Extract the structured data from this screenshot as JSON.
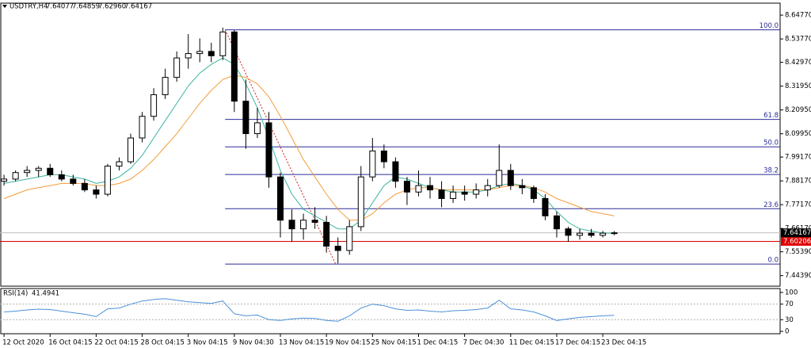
{
  "chart_data": {
    "type": "candlestick",
    "symbol": "USDTRY,H4",
    "quote": [
      "7.64077",
      "7.64859",
      "7.62960",
      "7.64167"
    ],
    "categories": [
      "12 Oct 2020",
      null,
      null,
      null,
      "16 Oct 04:15",
      null,
      null,
      null,
      "22 Oct 04:15",
      null,
      null,
      null,
      "28 Oct 04:15",
      null,
      null,
      null,
      "3 Nov 04:15",
      null,
      null,
      null,
      "9 Nov 04:30",
      null,
      null,
      null,
      "13 Nov 04:15",
      null,
      null,
      null,
      "19 Nov 04:15",
      null,
      null,
      null,
      "25 Nov 04:15",
      null,
      null,
      null,
      "1 Dec 04:15",
      null,
      null,
      null,
      "7 Dec 04:30",
      null,
      null,
      null,
      "11 Dec 04:15",
      null,
      null,
      null,
      "17 Dec 04:15",
      null,
      null,
      null,
      "23 Dec 04:15",
      null
    ],
    "open": [
      7.88,
      7.89,
      7.92,
      7.93,
      7.94,
      7.91,
      7.89,
      7.87,
      7.84,
      7.82,
      7.95,
      7.97,
      8.08,
      8.18,
      8.28,
      8.36,
      8.45,
      8.47,
      8.48,
      8.46,
      8.57,
      8.25,
      8.1,
      8.15,
      7.9,
      7.7,
      7.66,
      7.7,
      7.69,
      7.58,
      7.56,
      7.67,
      7.9,
      8.02,
      7.97,
      7.88,
      7.83,
      7.86,
      7.84,
      7.8,
      7.83,
      7.82,
      7.84,
      7.86,
      7.93,
      7.86,
      7.85,
      7.8,
      7.72,
      7.66,
      7.63,
      7.64,
      7.63,
      7.64
    ],
    "high": [
      7.91,
      7.93,
      7.95,
      7.95,
      7.96,
      7.93,
      7.91,
      7.89,
      7.86,
      7.96,
      7.99,
      8.1,
      8.2,
      8.31,
      8.4,
      8.48,
      8.56,
      8.54,
      8.52,
      8.59,
      8.58,
      8.35,
      8.22,
      8.2,
      7.92,
      7.75,
      7.73,
      7.76,
      7.72,
      7.62,
      7.7,
      7.95,
      8.08,
      8.05,
      7.99,
      7.9,
      7.93,
      7.9,
      7.88,
      7.86,
      7.86,
      7.87,
      7.89,
      8.05,
      7.96,
      7.89,
      7.86,
      7.82,
      7.74,
      7.67,
      7.66,
      7.66,
      7.65,
      7.65
    ],
    "low": [
      7.86,
      7.88,
      7.9,
      7.9,
      7.9,
      7.88,
      7.86,
      7.83,
      7.8,
      7.81,
      7.93,
      7.96,
      8.06,
      8.16,
      8.26,
      8.34,
      8.4,
      8.43,
      8.43,
      8.44,
      8.2,
      8.03,
      8.08,
      7.85,
      7.62,
      7.6,
      7.61,
      7.66,
      7.55,
      7.5,
      7.54,
      7.65,
      7.88,
      7.94,
      7.85,
      7.77,
      7.81,
      7.8,
      7.76,
      7.78,
      7.79,
      7.8,
      7.81,
      7.85,
      7.84,
      7.82,
      7.78,
      7.7,
      7.62,
      7.6,
      7.61,
      7.62,
      7.62,
      7.63
    ],
    "close": [
      7.89,
      7.92,
      7.93,
      7.94,
      7.91,
      7.89,
      7.87,
      7.84,
      7.82,
      7.95,
      7.97,
      8.08,
      8.18,
      8.28,
      8.36,
      8.45,
      8.47,
      8.48,
      8.46,
      8.57,
      8.25,
      8.1,
      8.15,
      7.9,
      7.7,
      7.66,
      7.7,
      7.69,
      7.58,
      7.56,
      7.67,
      7.9,
      8.02,
      7.97,
      7.88,
      7.83,
      7.86,
      7.84,
      7.8,
      7.83,
      7.82,
      7.84,
      7.86,
      7.93,
      7.86,
      7.85,
      7.8,
      7.72,
      7.66,
      7.63,
      7.64,
      7.63,
      7.64,
      7.64167
    ],
    "up_color": "#ffffff",
    "down_color": "#000000",
    "lines": [
      {
        "color": "#3cb4a0",
        "values": [
          7.87,
          7.88,
          7.89,
          7.9,
          7.91,
          7.91,
          7.9,
          7.89,
          7.87,
          7.88,
          7.9,
          7.94,
          8.0,
          8.08,
          8.16,
          8.24,
          8.32,
          8.38,
          8.42,
          8.45,
          8.42,
          8.33,
          8.22,
          8.08,
          7.93,
          7.82,
          7.75,
          7.72,
          7.69,
          7.66,
          7.66,
          7.7,
          7.78,
          7.86,
          7.9,
          7.89,
          7.87,
          7.85,
          7.84,
          7.83,
          7.83,
          7.83,
          7.84,
          7.86,
          7.87,
          7.86,
          7.84,
          7.8,
          7.74,
          7.69,
          7.66,
          7.65,
          7.64,
          7.64
        ]
      },
      {
        "color": "#f39c3a",
        "values": [
          7.8,
          7.82,
          7.84,
          7.85,
          7.86,
          7.87,
          7.87,
          7.87,
          7.86,
          7.86,
          7.87,
          7.89,
          7.93,
          7.98,
          8.04,
          8.1,
          8.17,
          8.24,
          8.3,
          8.35,
          8.37,
          8.36,
          8.33,
          8.27,
          8.18,
          8.08,
          7.98,
          7.9,
          7.82,
          7.75,
          7.7,
          7.7,
          7.73,
          7.78,
          7.82,
          7.84,
          7.85,
          7.85,
          7.84,
          7.84,
          7.84,
          7.84,
          7.84,
          7.85,
          7.86,
          7.86,
          7.85,
          7.83,
          7.8,
          7.78,
          7.76,
          7.74,
          7.73,
          7.72
        ]
      }
    ],
    "xlim": [
      -0.35,
      67.4
    ],
    "ylim": [
      7.395,
      8.703
    ],
    "yticks": [
      {
        "value": 8.6477,
        "label": "8.64770"
      },
      {
        "value": 8.5377,
        "label": "8.53770"
      },
      {
        "value": 8.4297,
        "label": "8.42970"
      },
      {
        "value": 8.3195,
        "label": "8.31950"
      },
      {
        "value": 8.2095,
        "label": "8.20950"
      },
      {
        "value": 8.0995,
        "label": "8.09950"
      },
      {
        "value": 7.9917,
        "label": "7.99170"
      },
      {
        "value": 7.8817,
        "label": "7.88170"
      },
      {
        "value": 7.7717,
        "label": "7.77170"
      },
      {
        "value": 7.6617,
        "label": "7.66170"
      },
      {
        "value": 7.5539,
        "label": "7.55390"
      },
      {
        "value": 7.4439,
        "label": "7.44390"
      }
    ],
    "current_price": {
      "value": 7.64167,
      "label": "7.64167"
    },
    "level_line": {
      "value": 7.60206,
      "label": "7.60206",
      "color": "#e00000"
    },
    "fibonacci": {
      "color": "#2b2b9a",
      "trend_color": "#d02020",
      "x_start": 19.2,
      "x_end": 28.8,
      "levels": [
        {
          "label": "100.0",
          "price": 8.58
        },
        {
          "label": "61.8",
          "price": 8.166
        },
        {
          "label": "50.0",
          "price": 8.039
        },
        {
          "label": "38.2",
          "price": 7.911
        },
        {
          "label": "23.6",
          "price": 7.753
        },
        {
          "label": "0.0",
          "price": 7.497
        }
      ]
    },
    "rsi": {
      "title": "RSI(14)",
      "color": "#4a90d9",
      "values": [
        50,
        52,
        55,
        57,
        56,
        52,
        48,
        44,
        38,
        58,
        60,
        70,
        78,
        82,
        84,
        80,
        76,
        74,
        72,
        78,
        45,
        40,
        42,
        30,
        28,
        32,
        34,
        33,
        28,
        26,
        40,
        60,
        70,
        66,
        58,
        54,
        55,
        52,
        50,
        53,
        54,
        56,
        60,
        80,
        58,
        55,
        50,
        40,
        28,
        32,
        36,
        38,
        40,
        41.4941
      ],
      "ylim": [
        -6,
        110
      ],
      "yticks": [
        100,
        70,
        30,
        0
      ],
      "levels": [
        70,
        30
      ]
    }
  }
}
